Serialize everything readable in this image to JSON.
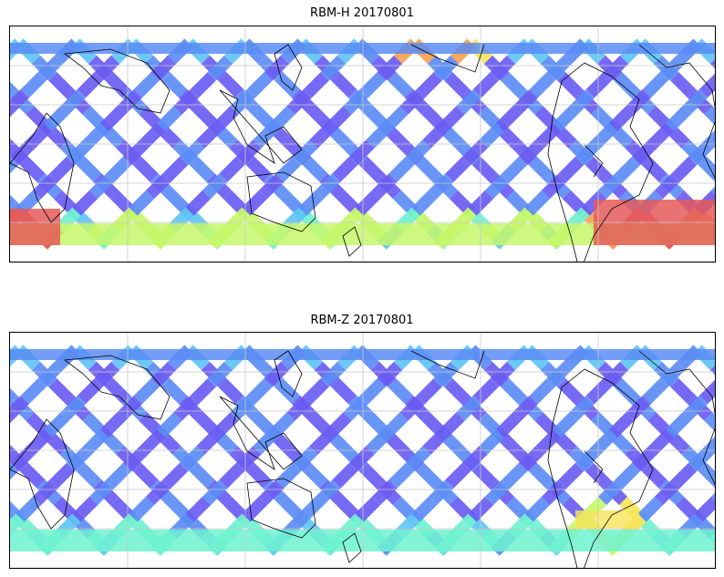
{
  "maps": [
    {
      "title": "RBM-H 20170801"
    },
    {
      "title": "RBM-Z 20170801"
    }
  ],
  "colormap": [
    "#6a5cf2",
    "#5b8cf5",
    "#5fc4f5",
    "#6ff2d0",
    "#c6f76a",
    "#f7e55a",
    "#f6a050",
    "#e55a5a"
  ],
  "grid_color": "#c8c8c8",
  "coast_color": "#000000"
}
